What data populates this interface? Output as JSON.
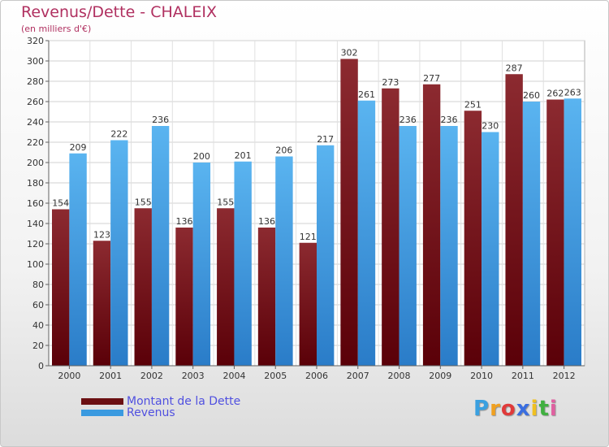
{
  "header": {
    "title": "Revenus/Dette - CHALEIX",
    "subtitle": "(en milliers d'€)"
  },
  "legend": {
    "items": [
      {
        "label": "Montant de la Dette",
        "color": "#6b0f12"
      },
      {
        "label": "Revenus",
        "color": "#3a9ae0"
      }
    ]
  },
  "logo": {
    "letters": [
      "P",
      "r",
      "o",
      "x",
      "i",
      "t",
      "i"
    ],
    "colors": [
      "#3aa0e0",
      "#f0a020",
      "#e03a3a",
      "#3a6ee0",
      "#f0c020",
      "#40b040",
      "#e060a0"
    ]
  },
  "chart_data": {
    "type": "bar",
    "title": "Revenus/Dette - CHALEIX",
    "subtitle": "(en milliers d'€)",
    "categories": [
      "2000",
      "2001",
      "2002",
      "2003",
      "2004",
      "2005",
      "2006",
      "2007",
      "2008",
      "2009",
      "2010",
      "2011",
      "2012"
    ],
    "series": [
      {
        "name": "Montant de la Dette",
        "color": "#6b0f12",
        "values": [
          154,
          123,
          155,
          136,
          155,
          136,
          121,
          302,
          273,
          277,
          251,
          287,
          262
        ]
      },
      {
        "name": "Revenus",
        "color": "#3a9ae0",
        "values": [
          209,
          222,
          236,
          200,
          201,
          206,
          217,
          261,
          236,
          236,
          230,
          260,
          263
        ]
      }
    ],
    "yticks": [
      0,
      20,
      40,
      60,
      80,
      100,
      120,
      140,
      160,
      180,
      200,
      220,
      240,
      260,
      280,
      300,
      320
    ],
    "ylim": [
      0,
      320
    ],
    "grid": true,
    "legend_position": "bottom-left"
  }
}
